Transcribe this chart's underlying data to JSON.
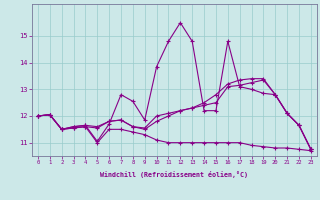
{
  "xlabel": "Windchill (Refroidissement éolien,°C)",
  "xlim": [
    -0.5,
    23.5
  ],
  "ylim": [
    10.5,
    16.2
  ],
  "yticks": [
    11,
    12,
    13,
    14,
    15
  ],
  "xticks": [
    0,
    1,
    2,
    3,
    4,
    5,
    6,
    7,
    8,
    9,
    10,
    11,
    12,
    13,
    14,
    15,
    16,
    17,
    18,
    19,
    20,
    21,
    22,
    23
  ],
  "bg_color": "#cce8e8",
  "line_color": "#880088",
  "grid_color": "#99cccc",
  "series": [
    {
      "x": [
        0,
        1,
        2,
        3,
        4,
        5,
        6,
        7,
        8,
        9,
        10,
        11,
        12,
        13,
        14,
        15,
        16,
        17,
        18,
        19,
        20,
        21,
        22,
        23
      ],
      "y": [
        12.0,
        12.05,
        11.5,
        11.55,
        11.6,
        11.0,
        11.5,
        11.5,
        11.4,
        11.3,
        11.1,
        11.0,
        11.0,
        11.0,
        11.0,
        11.0,
        11.0,
        11.0,
        10.9,
        10.85,
        10.8,
        10.8,
        10.75,
        10.7
      ]
    },
    {
      "x": [
        0,
        1,
        2,
        3,
        4,
        5,
        6,
        7,
        8,
        9,
        10,
        11,
        12,
        13,
        14,
        15,
        16,
        17,
        18,
        19,
        20,
        21,
        22,
        23
      ],
      "y": [
        12.0,
        12.05,
        11.5,
        11.6,
        11.65,
        11.05,
        11.7,
        12.8,
        12.55,
        11.85,
        13.85,
        14.8,
        15.5,
        14.8,
        12.2,
        12.2,
        14.8,
        13.1,
        13.0,
        12.85,
        12.8,
        12.1,
        11.65,
        10.75
      ]
    },
    {
      "x": [
        0,
        1,
        2,
        3,
        4,
        5,
        6,
        7,
        8,
        9,
        10,
        11,
        12,
        13,
        14,
        15,
        16,
        17,
        18,
        19,
        20,
        21,
        22,
        23
      ],
      "y": [
        12.0,
        12.05,
        11.5,
        11.6,
        11.65,
        11.6,
        11.8,
        11.85,
        11.6,
        11.55,
        12.0,
        12.1,
        12.2,
        12.3,
        12.4,
        12.5,
        13.1,
        13.15,
        13.25,
        13.35,
        12.8,
        12.1,
        11.65,
        10.75
      ]
    },
    {
      "x": [
        0,
        1,
        2,
        3,
        4,
        5,
        6,
        7,
        8,
        9,
        10,
        11,
        12,
        13,
        14,
        15,
        16,
        17,
        18,
        19,
        20,
        21,
        22,
        23
      ],
      "y": [
        12.0,
        12.05,
        11.5,
        11.55,
        11.6,
        11.55,
        11.8,
        11.85,
        11.6,
        11.5,
        11.8,
        12.0,
        12.2,
        12.3,
        12.5,
        12.8,
        13.2,
        13.35,
        13.4,
        13.4,
        12.8,
        12.1,
        11.65,
        10.75
      ]
    }
  ]
}
